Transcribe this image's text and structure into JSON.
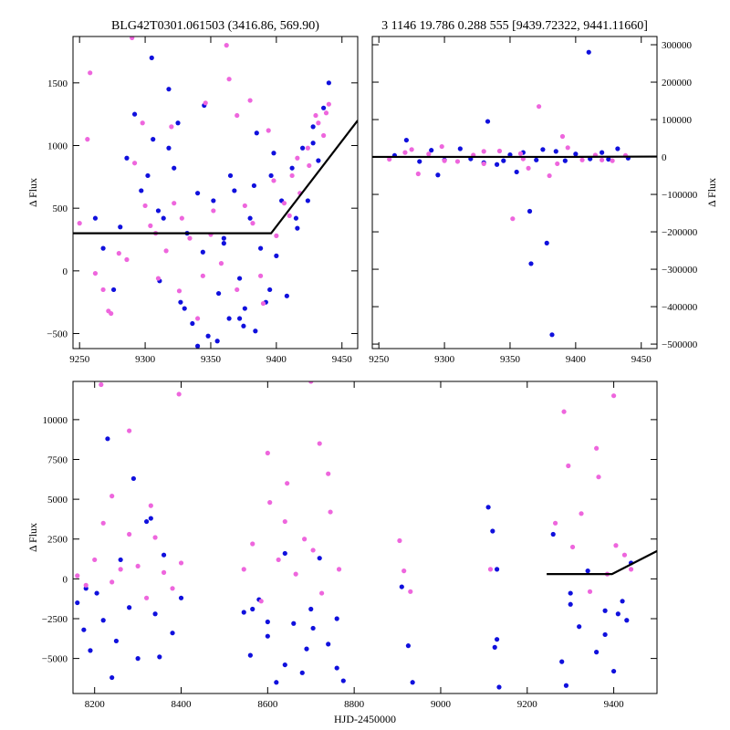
{
  "figure": {
    "title_left": "BLG42T0301.061503 (3416.86, 569.90)",
    "title_right": "3 1146 19.786 0.288 555 [9439.72322, 9441.11660]"
  },
  "colors": {
    "series_a": "#1010dd",
    "series_b": "#ee66dd",
    "model": "#000000"
  },
  "chart_data": [
    {
      "id": "top-left",
      "type": "scatter",
      "title": "BLG42T0301.061503 (3416.86, 569.90)",
      "xlabel": "",
      "ylabel": "Δ Flux",
      "xlim": [
        9245,
        9462
      ],
      "ylim": [
        -620,
        1870
      ],
      "xticks": [
        9250,
        9300,
        9350,
        9400,
        9450
      ],
      "yticks": [
        -500,
        0,
        500,
        1000,
        1500
      ],
      "y_axis_side": "left",
      "series": [
        {
          "color": "#1010dd",
          "x": [
            9262,
            9268,
            9276,
            9281,
            9286,
            9292,
            9297,
            9302,
            9306,
            9311,
            9314,
            9318,
            9322,
            9327,
            9332,
            9336,
            9340,
            9344,
            9348,
            9352,
            9356,
            9360,
            9364,
            9368,
            9372,
            9376,
            9380,
            9384,
            9388,
            9392,
            9396,
            9400,
            9404,
            9408,
            9412,
            9416,
            9420,
            9424,
            9428,
            9432,
            9436,
            9440,
            9305,
            9318,
            9330,
            9345,
            9355,
            9365,
            9375,
            9385,
            9395,
            9310,
            9325,
            9340,
            9360,
            9372,
            9383,
            9398,
            9415,
            9428
          ],
          "y": [
            420,
            180,
            -150,
            350,
            900,
            1250,
            640,
            760,
            1050,
            -80,
            420,
            1450,
            820,
            -250,
            300,
            -420,
            620,
            150,
            -520,
            560,
            -180,
            220,
            -380,
            640,
            -60,
            -300,
            420,
            -480,
            180,
            -250,
            760,
            120,
            560,
            -200,
            820,
            340,
            980,
            560,
            1150,
            880,
            1300,
            1500,
            1700,
            980,
            -300,
            1320,
            -560,
            760,
            -440,
            1100,
            -150,
            480,
            1180,
            -600,
            260,
            -380,
            680,
            940,
            420,
            1020
          ]
        },
        {
          "color": "#ee66dd",
          "x": [
            9250,
            9256,
            9262,
            9268,
            9274,
            9280,
            9286,
            9292,
            9298,
            9304,
            9310,
            9316,
            9322,
            9328,
            9334,
            9340,
            9346,
            9352,
            9358,
            9364,
            9370,
            9376,
            9382,
            9388,
            9394,
            9400,
            9406,
            9412,
            9418,
            9424,
            9430,
            9436,
            9440,
            9258,
            9272,
            9290,
            9308,
            9326,
            9344,
            9362,
            9380,
            9398,
            9416,
            9432,
            9300,
            9320,
            9350,
            9370,
            9390,
            9410,
            9425,
            9438
          ],
          "y": [
            380,
            1050,
            -20,
            -150,
            -340,
            140,
            90,
            860,
            1180,
            360,
            -60,
            160,
            540,
            420,
            260,
            -380,
            1340,
            480,
            60,
            1530,
            -150,
            520,
            380,
            -40,
            1120,
            280,
            540,
            760,
            620,
            980,
            1240,
            1080,
            1330,
            1580,
            -320,
            1860,
            300,
            -160,
            -40,
            1800,
            1360,
            720,
            900,
            1180,
            520,
            1150,
            290,
            1240,
            -260,
            440,
            840,
            1260
          ]
        }
      ],
      "model": {
        "x": [
          9245,
          9396,
          9462
        ],
        "y": [
          300,
          300,
          1200
        ]
      }
    },
    {
      "id": "top-right",
      "type": "scatter",
      "title": "3 1146 19.786 0.288 555 [9439.72322, 9441.11660]",
      "xlabel": "",
      "ylabel": "Δ Flux",
      "xlim": [
        9245,
        9462
      ],
      "ylim": [
        -512000,
        322000
      ],
      "xticks": [
        9250,
        9300,
        9350,
        9400,
        9450
      ],
      "yticks": [
        -500000,
        -400000,
        -300000,
        -200000,
        -100000,
        0,
        100000,
        200000,
        300000
      ],
      "y_axis_side": "right",
      "series": [
        {
          "color": "#1010dd",
          "x": [
            9262,
            9271,
            9281,
            9290,
            9300,
            9312,
            9320,
            9330,
            9333,
            9340,
            9350,
            9355,
            9360,
            9365,
            9366,
            9370,
            9378,
            9382,
            9385,
            9392,
            9400,
            9410,
            9411,
            9420,
            9432,
            9440,
            9295,
            9345,
            9375,
            9425
          ],
          "y": [
            4000,
            45000,
            -12000,
            18000,
            -8000,
            22000,
            -5000,
            -15000,
            95000,
            -20000,
            6000,
            -40000,
            12000,
            -145000,
            -285000,
            -8000,
            -230000,
            -475000,
            15000,
            -10000,
            8000,
            280000,
            -5000,
            12000,
            22000,
            -3000,
            -48000,
            -10000,
            20000,
            -6000
          ]
        },
        {
          "color": "#ee66dd",
          "x": [
            9258,
            9270,
            9280,
            9288,
            9298,
            9310,
            9322,
            9330,
            9342,
            9352,
            9358,
            9364,
            9372,
            9380,
            9386,
            9394,
            9405,
            9415,
            9428,
            9438,
            9275,
            9300,
            9330,
            9360,
            9390,
            9420
          ],
          "y": [
            -6000,
            12000,
            -45000,
            8000,
            28000,
            -12000,
            5000,
            -18000,
            16000,
            -165000,
            9000,
            -30000,
            135000,
            -50000,
            -18000,
            25000,
            -8000,
            5000,
            -10000,
            4000,
            20000,
            -10000,
            15000,
            -5000,
            55000,
            -8000
          ]
        }
      ],
      "model": {
        "x": [
          9245,
          9396,
          9462
        ],
        "y": [
          300,
          300,
          1200
        ]
      }
    },
    {
      "id": "bottom",
      "type": "scatter",
      "title": "",
      "xlabel": "HJD-2450000",
      "ylabel": "Δ Flux",
      "xlim": [
        8150,
        9500
      ],
      "ylim": [
        -7200,
        12400
      ],
      "xticks": [
        8200,
        8400,
        8600,
        8800,
        9000,
        9200,
        9400
      ],
      "yticks": [
        -5000,
        -2500,
        0,
        2500,
        5000,
        7500,
        10000
      ],
      "y_axis_side": "left",
      "series": [
        {
          "color": "#1010dd",
          "x": [
            8160,
            8175,
            8190,
            8205,
            8220,
            8240,
            8260,
            8280,
            8300,
            8320,
            8340,
            8360,
            8380,
            8400,
            8545,
            8560,
            8580,
            8600,
            8620,
            8640,
            8660,
            8680,
            8700,
            8720,
            8740,
            8760,
            8775,
            8910,
            8925,
            8935,
            9110,
            9120,
            9130,
            9135,
            9260,
            9280,
            9300,
            9320,
            9340,
            9360,
            9380,
            9400,
            9420,
            9440,
            8230,
            8290,
            8330,
            8565,
            8640,
            8705,
            9125,
            9290,
            9410,
            8180,
            8250,
            8350,
            8600,
            8690,
            8760,
            9130,
            9300,
            9380,
            9430
          ],
          "y": [
            -1500,
            -3200,
            -4500,
            -900,
            -2600,
            -6200,
            1200,
            -1800,
            -5000,
            3600,
            -2200,
            1500,
            -3400,
            -1200,
            -2100,
            -4800,
            -1300,
            -3600,
            -6500,
            1600,
            -2800,
            -5900,
            -1900,
            1300,
            -4100,
            -2500,
            -6400,
            -500,
            -4200,
            -6500,
            4500,
            3000,
            -3800,
            -6800,
            2800,
            -5200,
            -1600,
            -3000,
            500,
            -4600,
            -2000,
            -5800,
            -1400,
            1000,
            8800,
            6300,
            3800,
            -1900,
            -5400,
            -3100,
            -4300,
            -6700,
            -2200,
            -600,
            -3900,
            -4900,
            -2700,
            -4400,
            -5600,
            600,
            -900,
            -3500,
            -2600
          ]
        },
        {
          "color": "#ee66dd",
          "x": [
            8160,
            8180,
            8200,
            8220,
            8240,
            8260,
            8280,
            8300,
            8320,
            8340,
            8360,
            8380,
            8400,
            8545,
            8565,
            8585,
            8605,
            8625,
            8645,
            8665,
            8685,
            8705,
            8725,
            8745,
            8765,
            8915,
            8930,
            9115,
            9265,
            9285,
            9305,
            9325,
            9345,
            9365,
            9385,
            9405,
            9425,
            9440,
            8215,
            8280,
            8330,
            8395,
            8600,
            8700,
            8740,
            8905,
            9295,
            9360,
            9400,
            8240,
            8640,
            8720
          ],
          "y": [
            200,
            -400,
            1200,
            3500,
            -200,
            600,
            2800,
            800,
            -1200,
            2600,
            400,
            -600,
            1000,
            600,
            2200,
            -1400,
            4800,
            1200,
            6000,
            300,
            2500,
            1800,
            -900,
            4200,
            600,
            500,
            -800,
            600,
            3500,
            10500,
            2000,
            4100,
            -800,
            6400,
            300,
            2100,
            1500,
            600,
            12200,
            9300,
            4600,
            11600,
            7900,
            12400,
            6600,
            2400,
            7100,
            8200,
            11500,
            5200,
            3600,
            8500
          ]
        }
      ],
      "model": {
        "x": [
          9245,
          9396,
          9500
        ],
        "y": [
          300,
          300,
          1750
        ]
      }
    }
  ]
}
